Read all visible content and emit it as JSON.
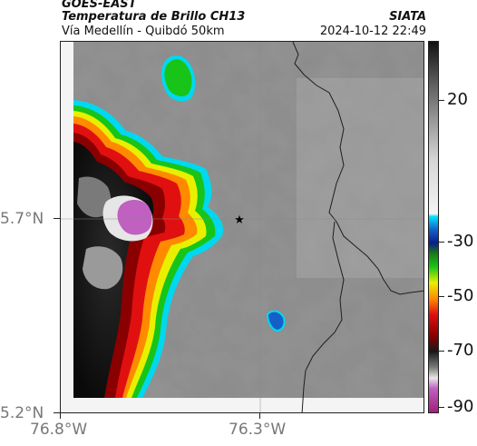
{
  "header": {
    "satellite": "GOES-EAST",
    "product": "Temperatura de Brillo CH13",
    "area": "Vía Medellín - Quibdó 50km",
    "organization": "SIATA",
    "timestamp": "2024-10-12 22:49"
  },
  "axes": {
    "x_ticks": [
      "76.8°W",
      "76.3°W"
    ],
    "y_ticks": [
      "5.7°N",
      "5.2°N"
    ]
  },
  "colorbar": {
    "tick_labels": [
      "20",
      "-30",
      "-50",
      "-70",
      "-90"
    ],
    "tick_values": [
      20,
      -30,
      -50,
      -70,
      -90
    ],
    "range": [
      -95,
      45
    ],
    "stops": [
      {
        "t": 45,
        "color": "#111111"
      },
      {
        "t": 30,
        "color": "#5a5a5a"
      },
      {
        "t": 15,
        "color": "#9a9a9a"
      },
      {
        "t": 0,
        "color": "#d6d6d6"
      },
      {
        "t": -20,
        "color": "#f4f4f4"
      },
      {
        "t": -21,
        "color": "#00e5ff"
      },
      {
        "t": -26,
        "color": "#1560c8"
      },
      {
        "t": -31,
        "color": "#0a1e8a"
      },
      {
        "t": -35,
        "color": "#1a7a1a"
      },
      {
        "t": -40,
        "color": "#18c418"
      },
      {
        "t": -46,
        "color": "#e8f000"
      },
      {
        "t": -52,
        "color": "#ff8a00"
      },
      {
        "t": -58,
        "color": "#e01010"
      },
      {
        "t": -66,
        "color": "#8a0000"
      },
      {
        "t": -72,
        "color": "#181818"
      },
      {
        "t": -78,
        "color": "#7a7a7a"
      },
      {
        "t": -82,
        "color": "#e6e6e6"
      },
      {
        "t": -86,
        "color": "#c060c0"
      },
      {
        "t": -95,
        "color": "#a0207a"
      }
    ]
  },
  "markers": {
    "star": "star-icon"
  }
}
